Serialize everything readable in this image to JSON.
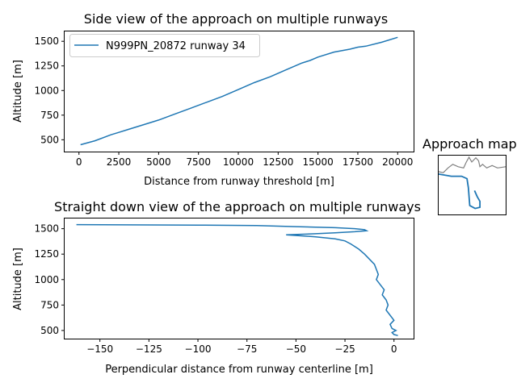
{
  "chart_data": [
    {
      "type": "line",
      "title": "Side view of the approach on multiple runways",
      "xlabel": "Distance from runway threshold [m]",
      "ylabel": "Altitude [m]",
      "xlim": [
        -900,
        21000
      ],
      "ylim": [
        380,
        1600
      ],
      "xticks": [
        0,
        2500,
        5000,
        7500,
        10000,
        12500,
        15000,
        17500,
        20000
      ],
      "yticks": [
        500,
        750,
        1000,
        1250,
        1500
      ],
      "legend": "top-left",
      "grid": false,
      "series": [
        {
          "name": "N999PN_20872 runway 34",
          "color": "#1f77b4",
          "x": [
            100,
            1000,
            2000,
            2500,
            3000,
            4000,
            5000,
            6000,
            7000,
            8000,
            9000,
            10000,
            11000,
            12000,
            13000,
            14000,
            14500,
            15000,
            16000,
            17000,
            17500,
            18000,
            19000,
            20000
          ],
          "y": [
            450,
            490,
            550,
            575,
            600,
            650,
            700,
            760,
            820,
            880,
            940,
            1010,
            1080,
            1140,
            1210,
            1280,
            1305,
            1340,
            1390,
            1420,
            1440,
            1450,
            1490,
            1540
          ]
        }
      ]
    },
    {
      "type": "line",
      "title": "Straight down view of the approach on multiple runways",
      "xlabel": "Perpendicular distance from runway centerline [m]",
      "ylabel": "Altitude [m]",
      "xlim": [
        -168,
        10
      ],
      "ylim": [
        420,
        1600
      ],
      "xticks": [
        -150,
        -125,
        -100,
        -75,
        -50,
        -25,
        0
      ],
      "yticks": [
        500,
        750,
        1000,
        1250,
        1500
      ],
      "grid": false,
      "series": [
        {
          "color": "#1f77b4",
          "x": [
            -162,
            -100,
            -70,
            -50,
            -30,
            -20,
            -15,
            -14,
            -20,
            -30,
            -40,
            -55,
            -40,
            -30,
            -25,
            -22,
            -18,
            -15,
            -10,
            -8,
            -9,
            -7,
            -5,
            -6,
            -4,
            -3,
            -4,
            -2,
            0,
            -2,
            -1,
            1,
            -1,
            0,
            2
          ],
          "y": [
            1540,
            1535,
            1530,
            1520,
            1510,
            1500,
            1490,
            1480,
            1470,
            1460,
            1450,
            1440,
            1420,
            1400,
            1380,
            1350,
            1300,
            1250,
            1150,
            1050,
            1000,
            950,
            900,
            850,
            800,
            750,
            700,
            650,
            600,
            560,
            520,
            500,
            480,
            460,
            450
          ]
        }
      ]
    },
    {
      "type": "line",
      "title": "Approach map",
      "series": [
        {
          "color": "#808080",
          "x": [
            0,
            0.08,
            0.15,
            0.22,
            0.3,
            0.38,
            0.42,
            0.46,
            0.5,
            0.56,
            0.6,
            0.62,
            0.66,
            0.72,
            0.8,
            0.88,
            1
          ],
          "y": [
            0.28,
            0.3,
            0.22,
            0.16,
            0.2,
            0.22,
            0.12,
            0.04,
            0.12,
            0.05,
            0.1,
            0.2,
            0.16,
            0.22,
            0.18,
            0.22,
            0.2
          ]
        },
        {
          "color": "#1f77b4",
          "x": [
            0,
            0.2,
            0.35,
            0.43,
            0.45,
            0.47,
            0.55,
            0.62,
            0.62,
            0.58,
            0.54
          ],
          "y": [
            0.32,
            0.36,
            0.36,
            0.4,
            0.55,
            0.85,
            0.9,
            0.88,
            0.78,
            0.7,
            0.6
          ]
        }
      ]
    }
  ]
}
